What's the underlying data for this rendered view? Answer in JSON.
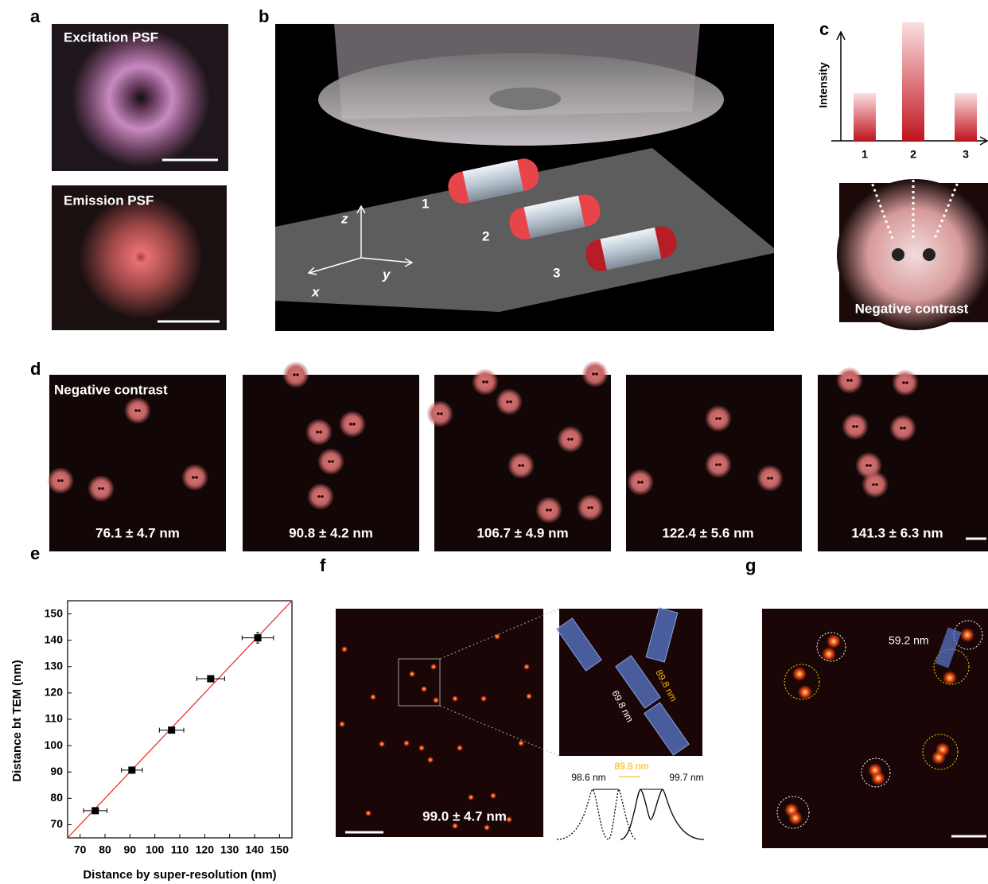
{
  "panels": {
    "a": {
      "label": "a",
      "top_title": "Excitation PSF",
      "bottom_title": "Emission PSF"
    },
    "b": {
      "label": "b",
      "axes": [
        "z",
        "y",
        "x"
      ],
      "particles": [
        "1",
        "2",
        "3"
      ]
    },
    "c": {
      "label": "c",
      "y_axis": "Intensity",
      "categories": [
        "1",
        "2",
        "3"
      ],
      "caption": "Negative contrast"
    },
    "d": {
      "label": "d",
      "caption": "Negative contrast",
      "distances": [
        "76.1 ± 4.7 nm",
        "90.8 ± 4.2 nm",
        "106.7 ± 4.9 nm",
        "122.4 ± 5.6 nm",
        "141.3 ± 6.3 nm"
      ]
    },
    "f": {
      "label": "f",
      "mean": "99.0 ± 4.7 nm",
      "inset_labels": [
        "89.8 nm",
        "69.8 nm"
      ],
      "profile_labels": [
        "98.6 nm",
        "89.8 nm",
        "99.7 nm"
      ]
    },
    "g": {
      "label": "g",
      "distance": "59.2 nm"
    }
  },
  "chart_data": {
    "type": "scatter",
    "label": "e",
    "x_label": "Distance by super-resolution (nm)",
    "y_label": "Distance bt TEM (nm)",
    "x": [
      76.1,
      90.8,
      106.7,
      122.4,
      141.3
    ],
    "values": [
      75.3,
      90.7,
      105.9,
      125.4,
      140.9
    ],
    "x_errors": [
      4.7,
      4.2,
      4.9,
      5.6,
      6.3
    ],
    "errors": [
      1,
      1,
      1,
      1,
      2
    ],
    "xlim": [
      65,
      155
    ],
    "ylim": [
      65,
      155
    ],
    "xticks": [
      70,
      80,
      90,
      100,
      110,
      120,
      130,
      140,
      150
    ],
    "yticks": [
      70,
      80,
      90,
      100,
      110,
      120,
      130,
      140,
      150
    ],
    "color": "#000000",
    "identity_line_color": "#e8251f"
  }
}
